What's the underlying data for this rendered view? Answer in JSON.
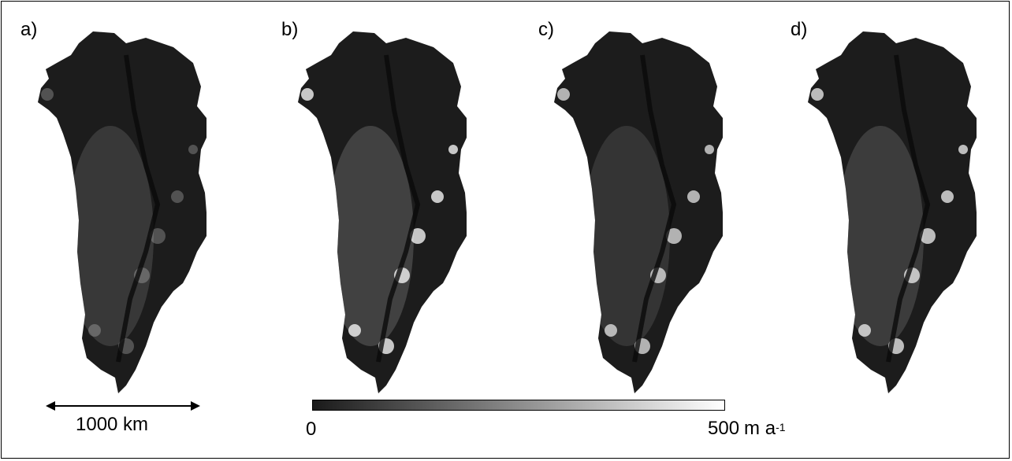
{
  "panels": [
    {
      "label": "a)"
    },
    {
      "label": "b)"
    },
    {
      "label": "c)"
    },
    {
      "label": "d)"
    }
  ],
  "scale_bar": {
    "label": "1000 km"
  },
  "colorbar": {
    "min_label": "0",
    "max_value": "500",
    "max_unit_text": "m a",
    "max_unit_exponent": "-1",
    "color_low": "#1a1a1a",
    "color_high": "#ffffff"
  },
  "colors": {
    "ice_dark": "#1c1c1c",
    "ice_mid": "#6e6e6e",
    "ice_bright": "#f2f2f2",
    "background": "#ffffff"
  }
}
